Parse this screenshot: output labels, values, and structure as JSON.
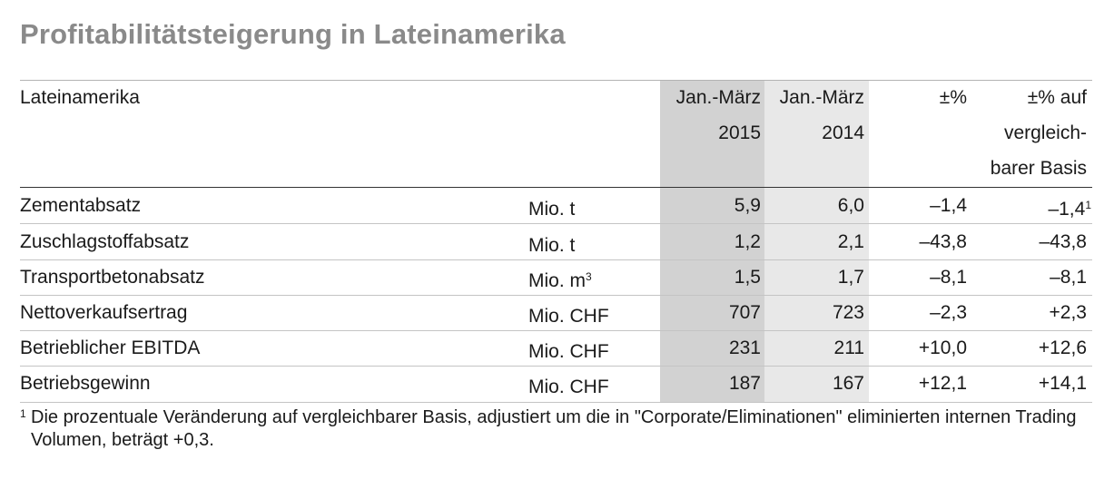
{
  "title": "Profitabilitätsteigerung in Lateinamerika",
  "header": {
    "label": "Lateinamerika",
    "col_2015": [
      "Jan.-März",
      "2015"
    ],
    "col_2014": [
      "Jan.-März",
      "2014"
    ],
    "col_pct": "±%",
    "col_basis": [
      "±% auf",
      "vergleich-",
      "barer Basis"
    ]
  },
  "rows": [
    {
      "label": "Zementabsatz",
      "unit": "Mio. t",
      "unit_sup": "",
      "v2015": "5,9",
      "v2014": "6,0",
      "pct": "–1,4",
      "basis": "–1,4",
      "basis_sup": "1"
    },
    {
      "label": "Zuschlagstoffabsatz",
      "unit": "Mio. t",
      "unit_sup": "",
      "v2015": "1,2",
      "v2014": "2,1",
      "pct": "–43,8",
      "basis": "–43,8",
      "basis_sup": ""
    },
    {
      "label": "Transportbetonabsatz",
      "unit": "Mio. m",
      "unit_sup": "3",
      "v2015": "1,5",
      "v2014": "1,7",
      "pct": "–8,1",
      "basis": "–8,1",
      "basis_sup": ""
    },
    {
      "label": "Nettoverkaufsertrag",
      "unit": "Mio. CHF",
      "unit_sup": "",
      "v2015": "707",
      "v2014": "723",
      "pct": "–2,3",
      "basis": "+2,3",
      "basis_sup": ""
    },
    {
      "label": "Betrieblicher EBITDA",
      "unit": "Mio. CHF",
      "unit_sup": "",
      "v2015": "231",
      "v2014": "211",
      "pct": "+10,0",
      "basis": "+12,6",
      "basis_sup": ""
    },
    {
      "label": "Betriebsgewinn",
      "unit": "Mio. CHF",
      "unit_sup": "",
      "v2015": "187",
      "v2014": "167",
      "pct": "+12,1",
      "basis": "+14,1",
      "basis_sup": ""
    }
  ],
  "footnote": {
    "mark": "1",
    "text": "Die prozentuale Veränderung auf vergleichbarer Basis, adjustiert um die in \"Corporate/Eliminationen\" eliminierten internen Trading Volumen, beträgt +0,3."
  }
}
